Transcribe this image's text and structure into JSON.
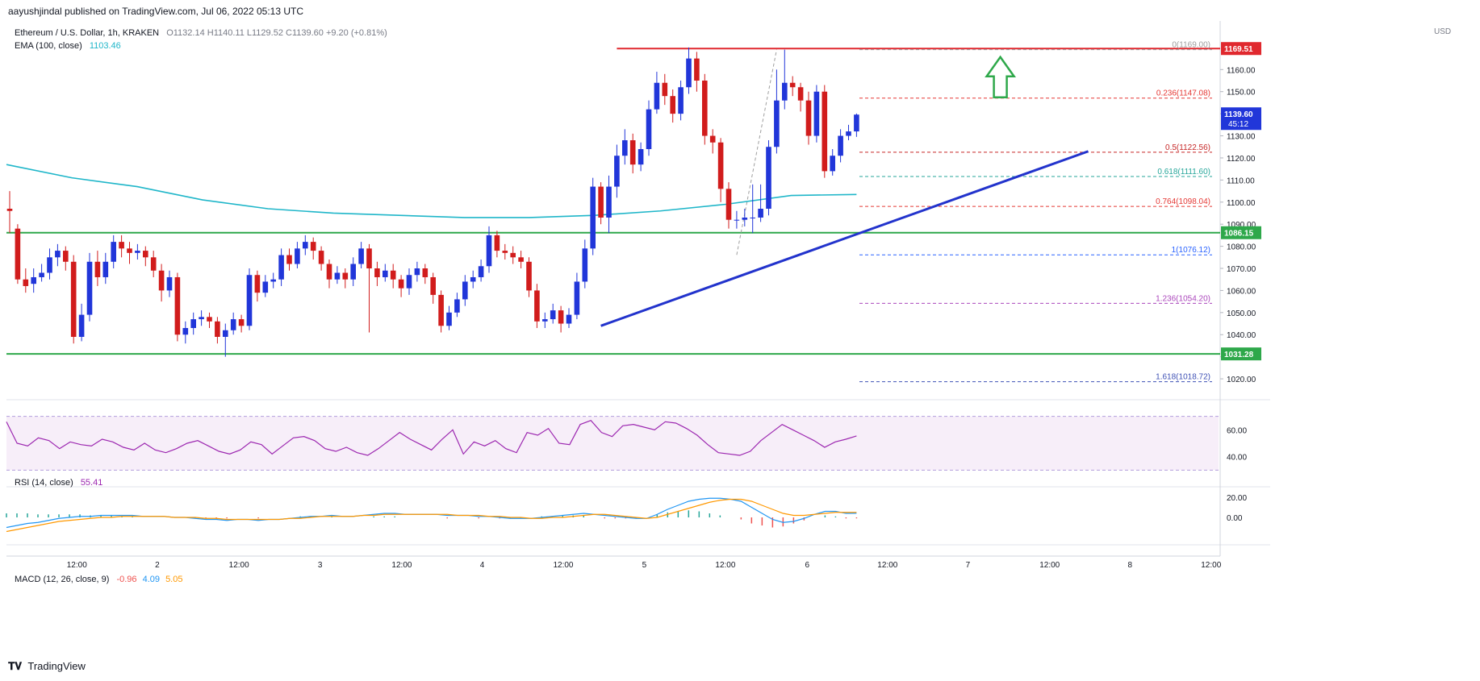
{
  "header": {
    "publisher": "aayushjindal published on TradingView.com, Jul 06, 2022 05:13 UTC",
    "symbol": "Ethereum / U.S. Dollar, 1h, KRAKEN",
    "ohlc": "O1132.14  H1140.11  L1129.52  C1139.60  +9.20 (+0.81%)",
    "ema_label": "EMA (100, close)",
    "ema_value": "1103.46"
  },
  "currency": "USD",
  "footer_logo": "TradingView",
  "colors": {
    "up": "#2136d9",
    "down": "#d11c1c",
    "ema": "#1fb6c9",
    "trendline": "#2233cc",
    "support": "#2ea84a",
    "resistance": "#e0282e",
    "rsi": "#9c27b0",
    "macd": "#2196f3",
    "signal": "#ff9800",
    "hist_up": "#26a69a",
    "hist_down": "#ef5350"
  },
  "chart_data": {
    "type": "candlestick",
    "symbol": "ETHUSD",
    "timeframe": "1h",
    "ylim": [
      1012,
      1182
    ],
    "y_ticks": [
      1020,
      1030,
      1040,
      1050,
      1060,
      1070,
      1080,
      1090,
      1100,
      1110,
      1120,
      1130,
      1140,
      1150,
      1160
    ],
    "x_ticks": [
      "12:00",
      "2",
      "12:00",
      "3",
      "12:00",
      "4",
      "12:00",
      "5",
      "12:00",
      "6",
      "12:00",
      "7",
      "12:00",
      "8",
      "12:00"
    ],
    "candles": [
      [
        1097,
        1096,
        1105,
        1086
      ],
      [
        1088,
        1065,
        1090,
        1063
      ],
      [
        1065,
        1062,
        1070,
        1059
      ],
      [
        1063,
        1066,
        1070,
        1059
      ],
      [
        1066,
        1068,
        1072,
        1064
      ],
      [
        1068,
        1075,
        1079,
        1065
      ],
      [
        1075,
        1078,
        1081,
        1071
      ],
      [
        1078,
        1073,
        1080,
        1069
      ],
      [
        1073,
        1039,
        1076,
        1036
      ],
      [
        1039,
        1049,
        1054,
        1037
      ],
      [
        1049,
        1073,
        1077,
        1046
      ],
      [
        1073,
        1066,
        1078,
        1062
      ],
      [
        1066,
        1073,
        1077,
        1063
      ],
      [
        1073,
        1082,
        1085,
        1070
      ],
      [
        1082,
        1079,
        1085,
        1075
      ],
      [
        1079,
        1077,
        1082,
        1072
      ],
      [
        1077,
        1078,
        1081,
        1074
      ],
      [
        1078,
        1075,
        1080,
        1071
      ],
      [
        1075,
        1069,
        1078,
        1066
      ],
      [
        1069,
        1060,
        1072,
        1055
      ],
      [
        1060,
        1066,
        1069,
        1057
      ],
      [
        1066,
        1040,
        1068,
        1037
      ],
      [
        1040,
        1043,
        1046,
        1036
      ],
      [
        1043,
        1047,
        1050,
        1040
      ],
      [
        1047,
        1048,
        1051,
        1044
      ],
      [
        1048,
        1046,
        1050,
        1043
      ],
      [
        1046,
        1039,
        1048,
        1036
      ],
      [
        1039,
        1042,
        1045,
        1030
      ],
      [
        1042,
        1047,
        1050,
        1040
      ],
      [
        1047,
        1044,
        1049,
        1041
      ],
      [
        1044,
        1067,
        1070,
        1042
      ],
      [
        1067,
        1059,
        1069,
        1055
      ],
      [
        1059,
        1064,
        1067,
        1057
      ],
      [
        1064,
        1065,
        1068,
        1061
      ],
      [
        1065,
        1076,
        1079,
        1062
      ],
      [
        1076,
        1072,
        1079,
        1069
      ],
      [
        1072,
        1079,
        1082,
        1070
      ],
      [
        1079,
        1082,
        1085,
        1076
      ],
      [
        1082,
        1078,
        1084,
        1074
      ],
      [
        1078,
        1072,
        1080,
        1069
      ],
      [
        1072,
        1065,
        1074,
        1061
      ],
      [
        1065,
        1068,
        1071,
        1063
      ],
      [
        1068,
        1065,
        1070,
        1061
      ],
      [
        1065,
        1072,
        1075,
        1062
      ],
      [
        1072,
        1079,
        1082,
        1070
      ],
      [
        1079,
        1070,
        1081,
        1041
      ],
      [
        1070,
        1066,
        1073,
        1062
      ],
      [
        1066,
        1069,
        1072,
        1064
      ],
      [
        1069,
        1065,
        1072,
        1061
      ],
      [
        1065,
        1061,
        1067,
        1057
      ],
      [
        1061,
        1067,
        1070,
        1058
      ],
      [
        1067,
        1070,
        1073,
        1064
      ],
      [
        1070,
        1066,
        1072,
        1063
      ],
      [
        1066,
        1058,
        1068,
        1054
      ],
      [
        1058,
        1044,
        1060,
        1041
      ],
      [
        1044,
        1050,
        1053,
        1042
      ],
      [
        1050,
        1056,
        1059,
        1048
      ],
      [
        1056,
        1064,
        1067,
        1053
      ],
      [
        1064,
        1066,
        1069,
        1061
      ],
      [
        1066,
        1071,
        1074,
        1064
      ],
      [
        1071,
        1085,
        1089,
        1068
      ],
      [
        1085,
        1078,
        1087,
        1075
      ],
      [
        1078,
        1077,
        1081,
        1074
      ],
      [
        1077,
        1075,
        1080,
        1072
      ],
      [
        1075,
        1073,
        1078,
        1070
      ],
      [
        1073,
        1060,
        1075,
        1057
      ],
      [
        1060,
        1046,
        1063,
        1043
      ],
      [
        1046,
        1047,
        1050,
        1043
      ],
      [
        1047,
        1051,
        1054,
        1045
      ],
      [
        1051,
        1045,
        1053,
        1041
      ],
      [
        1045,
        1049,
        1052,
        1043
      ],
      [
        1049,
        1064,
        1068,
        1047
      ],
      [
        1064,
        1079,
        1083,
        1061
      ],
      [
        1079,
        1107,
        1111,
        1076
      ],
      [
        1107,
        1093,
        1109,
        1090
      ],
      [
        1093,
        1107,
        1112,
        1086
      ],
      [
        1107,
        1121,
        1126,
        1102
      ],
      [
        1121,
        1128,
        1133,
        1117
      ],
      [
        1128,
        1117,
        1131,
        1113
      ],
      [
        1117,
        1124,
        1127,
        1114
      ],
      [
        1124,
        1142,
        1146,
        1121
      ],
      [
        1142,
        1154,
        1159,
        1140
      ],
      [
        1154,
        1148,
        1158,
        1144
      ],
      [
        1148,
        1140,
        1151,
        1136
      ],
      [
        1140,
        1152,
        1155,
        1137
      ],
      [
        1152,
        1165,
        1170,
        1149
      ],
      [
        1165,
        1155,
        1168,
        1150
      ],
      [
        1155,
        1130,
        1158,
        1126
      ],
      [
        1130,
        1127,
        1133,
        1122
      ],
      [
        1127,
        1106,
        1129,
        1100
      ],
      [
        1106,
        1092,
        1109,
        1088
      ],
      [
        1092,
        1092,
        1096,
        1088
      ],
      [
        1092,
        1093,
        1097,
        1089
      ],
      [
        1093,
        1093,
        1108,
        1086
      ],
      [
        1093,
        1097,
        1108,
        1091
      ],
      [
        1097,
        1125,
        1128,
        1094
      ],
      [
        1125,
        1146,
        1160,
        1122
      ],
      [
        1146,
        1154,
        1169,
        1142
      ],
      [
        1154,
        1152,
        1157,
        1148
      ],
      [
        1152,
        1146,
        1154,
        1141
      ],
      [
        1146,
        1130,
        1150,
        1126
      ],
      [
        1130,
        1150,
        1153,
        1127
      ],
      [
        1150,
        1114,
        1153,
        1111
      ],
      [
        1114,
        1121,
        1124,
        1112
      ],
      [
        1121,
        1130,
        1133,
        1118
      ],
      [
        1130,
        1132,
        1135,
        1128
      ],
      [
        1132,
        1139.6,
        1140.11,
        1129.52
      ]
    ],
    "ema": [
      1117,
      1111,
      1107,
      1101,
      1097,
      1095,
      1094,
      1093,
      1093,
      1094,
      1096,
      1099,
      1103,
      1103.46
    ],
    "rsi_series": [
      66,
      50,
      48,
      54,
      52,
      46,
      51,
      49,
      48,
      53,
      51,
      47,
      45,
      50,
      45,
      43,
      46,
      50,
      52,
      48,
      44,
      42,
      45,
      51,
      49,
      42,
      48,
      54,
      55,
      52,
      46,
      44,
      47,
      43,
      41,
      46,
      52,
      58,
      53,
      49,
      45,
      53,
      60,
      42,
      51,
      48,
      52,
      46,
      43,
      58,
      56,
      61,
      50,
      49,
      64,
      67,
      58,
      55,
      63,
      64,
      62,
      60,
      66,
      65,
      61,
      56,
      49,
      43,
      42,
      41,
      44,
      52,
      58,
      64,
      60,
      56,
      52,
      47,
      51,
      53,
      55.41
    ],
    "rsi_ticks": [
      40,
      60
    ],
    "rsi_bands": [
      70,
      30
    ],
    "macd_series": [
      -10,
      -8,
      -6,
      -5,
      -3,
      -1,
      0,
      1,
      1,
      2,
      2,
      2,
      2,
      1,
      1,
      1,
      0,
      0,
      -1,
      -2,
      -2,
      -3,
      -2,
      -2,
      -3,
      -2,
      -2,
      -1,
      0,
      1,
      1,
      2,
      1,
      1,
      2,
      3,
      4,
      4,
      3,
      3,
      3,
      3,
      2,
      2,
      2,
      1,
      1,
      0,
      -1,
      -1,
      -1,
      0,
      1,
      2,
      3,
      4,
      3,
      2,
      1,
      0,
      -1,
      -1,
      3,
      8,
      12,
      16,
      18,
      19,
      19,
      18,
      16,
      10,
      4,
      -2,
      -5,
      -4,
      -1,
      3,
      6,
      6,
      4,
      4.09
    ],
    "signal_series": [
      -14,
      -12,
      -10,
      -8,
      -6,
      -4,
      -3,
      -2,
      -1,
      0,
      0,
      1,
      1,
      1,
      1,
      1,
      0,
      0,
      0,
      -1,
      -1,
      -2,
      -2,
      -2,
      -2,
      -2,
      -2,
      -1,
      -1,
      0,
      1,
      1,
      1,
      1,
      2,
      2,
      3,
      3,
      3,
      3,
      3,
      3,
      3,
      2,
      2,
      2,
      1,
      1,
      0,
      0,
      -1,
      -1,
      0,
      0,
      1,
      2,
      3,
      3,
      2,
      1,
      0,
      -1,
      0,
      3,
      6,
      9,
      12,
      15,
      17,
      18,
      18,
      16,
      12,
      8,
      4,
      2,
      2,
      3,
      4,
      5,
      5,
      5.05
    ],
    "macd_ticks": [
      0,
      20
    ],
    "rsi_label": "RSI (14, close)",
    "rsi_value": "55.41",
    "macd_label": "MACD (12, 26, close, 9)",
    "macd_val1": "-0.96",
    "macd_val2": "4.09",
    "macd_val3": "5.05",
    "fib_levels": [
      {
        "label": "0(1169.00)",
        "price": 1169.0,
        "color": "#9e9e9e"
      },
      {
        "label": "0.236(1147.08)",
        "price": 1147.08,
        "color": "#e53935"
      },
      {
        "label": "0.5(1122.56)",
        "price": 1122.56,
        "color": "#c62828"
      },
      {
        "label": "0.618(1111.60)",
        "price": 1111.6,
        "color": "#26a69a"
      },
      {
        "label": "0.764(1098.04)",
        "price": 1098.04,
        "color": "#e53935"
      },
      {
        "label": "1(1076.12)",
        "price": 1076.12,
        "color": "#2962ff"
      },
      {
        "label": "1.236(1054.20)",
        "price": 1054.2,
        "color": "#ab47bc"
      },
      {
        "label": "1.618(1018.72)",
        "price": 1018.72,
        "color": "#3f51b5"
      }
    ],
    "price_tags": [
      {
        "label": "1169.51",
        "price": 1169.51,
        "color": "#e0282e"
      },
      {
        "label": "1086.15",
        "price": 1086.15,
        "color": "#2ea84a"
      },
      {
        "label": "1031.28",
        "price": 1031.28,
        "color": "#2ea84a"
      }
    ],
    "last_price": {
      "label": "1139.60",
      "countdown": "45:12",
      "price": 1139.6
    },
    "horizontal_lines": [
      {
        "price": 1169.51,
        "color": "#e0282e",
        "from_candle": 76
      },
      {
        "price": 1086.15,
        "color": "#2ea84a",
        "from_candle": 0
      },
      {
        "price": 1031.28,
        "color": "#2ea84a",
        "from_candle": 0
      }
    ],
    "trendline": {
      "from": [
        74,
        1044
      ],
      "to": [
        135,
        1123
      ]
    },
    "up_arrow": {
      "candle": 124,
      "price": 1154
    }
  }
}
